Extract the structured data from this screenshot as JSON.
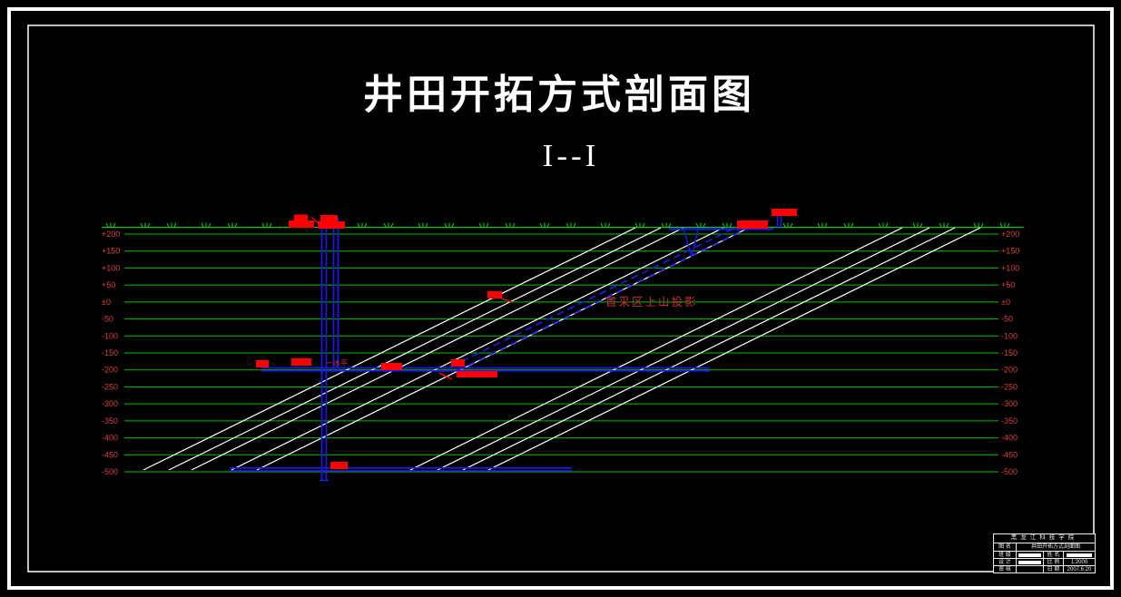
{
  "drawing": {
    "title": "井田开拓方式剖面图",
    "section_label": "I--I",
    "annotations": {
      "rise_projection_label": "首采区上山投影",
      "level_one_label": "一水平"
    },
    "elevations": [
      "+200",
      "+150",
      "+100",
      "+50",
      "±0",
      "-50",
      "-100",
      "-150",
      "-200",
      "-250",
      "-300",
      "-350",
      "-400",
      "-450",
      "-500"
    ],
    "colors": {
      "background": "#000000",
      "frame": "#ffffff",
      "gridline_green": "#00c000",
      "grass_green": "#00dd00",
      "seam_white": "#ffffff",
      "workings_blue": "#1a1ae6",
      "structures_red": "#ff0000",
      "label_red": "#d94040"
    }
  },
  "title_block": {
    "school": "黑龙江科技学院",
    "name_label": "图 名",
    "drawing_name": "井田开拓方式剖面图",
    "class_label": "班 级",
    "student_label": "姓 名",
    "design_label": "设 计",
    "scale_label": "比 例",
    "scale": "1:2000",
    "check_label": "审 核",
    "date_label": "日 期",
    "date": "2007.6.20"
  }
}
